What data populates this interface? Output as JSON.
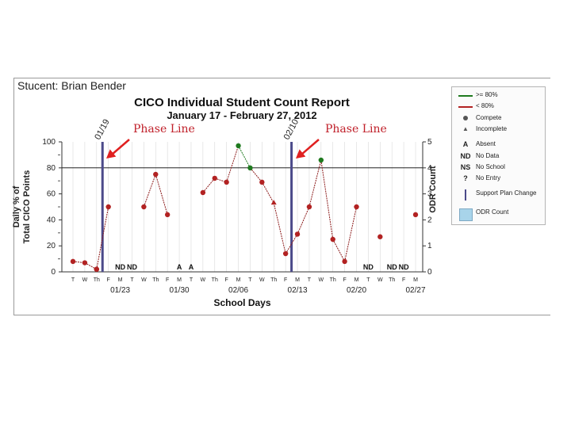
{
  "header": {
    "student": "Stucent: Brian Bender",
    "title": "CICO Individual Student Count Report",
    "date_range": "January 17 - February 27, 2012"
  },
  "annotations": {
    "phase_line_1": "Phase Line",
    "phase_line_2": "Phase Line",
    "plan_change_1": "01/19",
    "plan_change_2": "02/10",
    "arrow_color": "#e02020"
  },
  "legend": {
    "items": [
      {
        "symbol": "green-line-icon",
        "label": ">= 80%"
      },
      {
        "symbol": "red-line-icon",
        "label": "< 80%"
      },
      {
        "symbol": "dot-icon",
        "label": "Compete"
      },
      {
        "symbol": "triangle-icon",
        "label": "Incomplete"
      },
      {
        "symbol": "A",
        "label": "Absent"
      },
      {
        "symbol": "ND",
        "label": "No Data"
      },
      {
        "symbol": "NS",
        "label": "No School"
      },
      {
        "symbol": "?",
        "label": "No Entry"
      },
      {
        "symbol": "bar-icon",
        "label": "Support Plan Change"
      },
      {
        "symbol": "box-icon",
        "label": "ODR Count"
      }
    ]
  },
  "chart_data": {
    "type": "line",
    "title": "CICO Individual Student Count Report",
    "subtitle": "January 17 - February 27, 2012",
    "xlabel": "School Days",
    "ylabel": "Daily % of Total CICO Points",
    "y2label": "ODR Count",
    "ylim": [
      0,
      100
    ],
    "y2lim": [
      0,
      5
    ],
    "yticks": [
      "0",
      "20",
      "40",
      "60",
      "80",
      "100"
    ],
    "y2ticks": [
      "0",
      "1",
      "2",
      "3",
      "4",
      "5"
    ],
    "y_display_ticks": [
      "0",
      "20",
      "40",
      "60",
      "80",
      "100"
    ],
    "threshold": 80,
    "day_labels": [
      "T",
      "W",
      "Th",
      "F",
      "M",
      "T",
      "W",
      "Th",
      "F",
      "M",
      "T",
      "W",
      "Th",
      "F",
      "M",
      "T",
      "W",
      "Th",
      "F",
      "M",
      "T",
      "W",
      "Th",
      "F",
      "M",
      "T",
      "W",
      "Th",
      "F",
      "M"
    ],
    "date_labels": [
      {
        "index": 4,
        "label": "01/23"
      },
      {
        "index": 9,
        "label": "01/30"
      },
      {
        "index": 14,
        "label": "02/06"
      },
      {
        "index": 19,
        "label": "02/13"
      },
      {
        "index": 24,
        "label": "02/20"
      },
      {
        "index": 29,
        "label": "02/27"
      }
    ],
    "support_plan_changes": [
      2.5,
      18.5
    ],
    "segments": [
      [
        [
          0,
          8,
          "complete"
        ],
        [
          1,
          7,
          "complete"
        ],
        [
          2,
          2,
          "complete"
        ]
      ],
      [
        [
          2,
          2,
          "complete"
        ],
        [
          3,
          50,
          "complete"
        ]
      ],
      [
        [
          6,
          50,
          "complete"
        ],
        [
          7,
          75,
          "complete"
        ],
        [
          8,
          44,
          "complete"
        ]
      ],
      [
        [
          11,
          61,
          "complete"
        ],
        [
          12,
          72,
          "complete"
        ],
        [
          13,
          69,
          "complete"
        ],
        [
          14,
          97,
          "complete"
        ],
        [
          15,
          80,
          "complete"
        ],
        [
          16,
          69,
          "complete"
        ],
        [
          17,
          53,
          "incomplete"
        ],
        [
          18,
          14,
          "complete"
        ],
        [
          19,
          29,
          "complete"
        ],
        [
          20,
          50,
          "complete"
        ],
        [
          21,
          86,
          "complete"
        ],
        [
          22,
          25,
          "complete"
        ],
        [
          23,
          8,
          "complete"
        ],
        [
          24,
          50,
          "complete"
        ]
      ],
      [
        [
          26,
          27,
          "complete"
        ]
      ],
      [
        [
          29,
          44,
          "complete"
        ]
      ]
    ],
    "day_markers": [
      {
        "index": 4,
        "text": "ND"
      },
      {
        "index": 5,
        "text": "ND"
      },
      {
        "index": 9,
        "text": "A"
      },
      {
        "index": 10,
        "text": "A"
      },
      {
        "index": 25,
        "text": "ND"
      },
      {
        "index": 27,
        "text": "ND"
      },
      {
        "index": 28,
        "text": "ND"
      }
    ],
    "colors": {
      "above": "#1f7a1f",
      "below": "#b22222",
      "line": "#8b1a1a",
      "phase": "#4b4a8a",
      "grid": "#d9d9d9"
    }
  }
}
